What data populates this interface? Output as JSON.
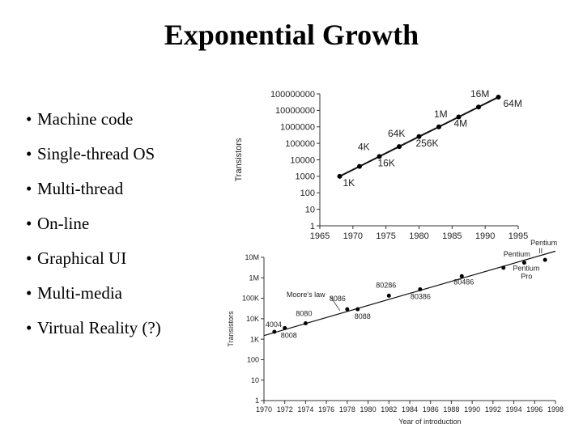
{
  "slide": {
    "title": "Exponential Growth",
    "bullet_marker": "•",
    "bullets": [
      "Machine code",
      "Single-thread OS",
      "Multi-thread",
      "On-line",
      "Graphical UI",
      "Multi-media",
      "Virtual Reality (?)"
    ]
  },
  "chart_data": [
    {
      "type": "line",
      "title": "",
      "xlabel": "",
      "ylabel": "Transistors",
      "y_scale": "log",
      "xlim": [
        1965,
        1995
      ],
      "ylim": [
        1,
        100000000
      ],
      "x_ticks": [
        "1965",
        "1970",
        "1975",
        "1980",
        "1985",
        "1990",
        "1995"
      ],
      "y_ticks": [
        "1",
        "10",
        "100",
        "1000",
        "10000",
        "100000",
        "1000000",
        "10000000",
        "100000000"
      ],
      "points": [
        {
          "x": 1968,
          "y": 1000,
          "label": "1K"
        },
        {
          "x": 1971,
          "y": 4000,
          "label": "4K"
        },
        {
          "x": 1974,
          "y": 16000,
          "label": "16K"
        },
        {
          "x": 1977,
          "y": 64000,
          "label": "64K"
        },
        {
          "x": 1980,
          "y": 256000,
          "label": "256K"
        },
        {
          "x": 1983,
          "y": 1000000,
          "label": "1M"
        },
        {
          "x": 1986,
          "y": 4000000,
          "label": "4M"
        },
        {
          "x": 1989,
          "y": 16000000,
          "label": "16M"
        },
        {
          "x": 1992,
          "y": 64000000,
          "label": "64M"
        }
      ],
      "series": [
        {
          "name": "",
          "x": [
            1968,
            1971,
            1974,
            1977,
            1980,
            1983,
            1986,
            1989,
            1992
          ],
          "values": [
            1000,
            4000,
            16000,
            64000,
            256000,
            1000000,
            4000000,
            16000000,
            64000000
          ]
        }
      ]
    },
    {
      "type": "scatter",
      "title": "",
      "xlabel": "Year of introduction",
      "ylabel": "Transistors",
      "y_scale": "log",
      "xlim": [
        1970,
        1998
      ],
      "ylim": [
        1,
        10000000
      ],
      "x_ticks": [
        "1970",
        "1972",
        "1974",
        "1976",
        "1978",
        "1980",
        "1982",
        "1984",
        "1986",
        "1988",
        "1990",
        "1992",
        "1994",
        "1996",
        "1998"
      ],
      "y_ticks": [
        "1",
        "10",
        "100",
        "1K",
        "10K",
        "100K",
        "1M",
        "10M"
      ],
      "points": [
        {
          "x": 1971,
          "y": 2300,
          "label": "4004"
        },
        {
          "x": 1972,
          "y": 3500,
          "label": "8008"
        },
        {
          "x": 1974,
          "y": 6000,
          "label": "8080"
        },
        {
          "x": 1978,
          "y": 29000,
          "label": "8086"
        },
        {
          "x": 1979,
          "y": 29000,
          "label": "8088"
        },
        {
          "x": 1982,
          "y": 134000,
          "label": "80286"
        },
        {
          "x": 1985,
          "y": 275000,
          "label": "80386"
        },
        {
          "x": 1989,
          "y": 1200000,
          "label": "80486"
        },
        {
          "x": 1993,
          "y": 3100000,
          "label": "Pentium"
        },
        {
          "x": 1995,
          "y": 5500000,
          "label": "Pentium Pro"
        },
        {
          "x": 1997,
          "y": 7500000,
          "label": "Pentium II"
        }
      ],
      "trend_line": {
        "label": "Moore's law",
        "x": [
          1970,
          1998
        ],
        "values": [
          1500,
          20000000
        ]
      }
    }
  ]
}
